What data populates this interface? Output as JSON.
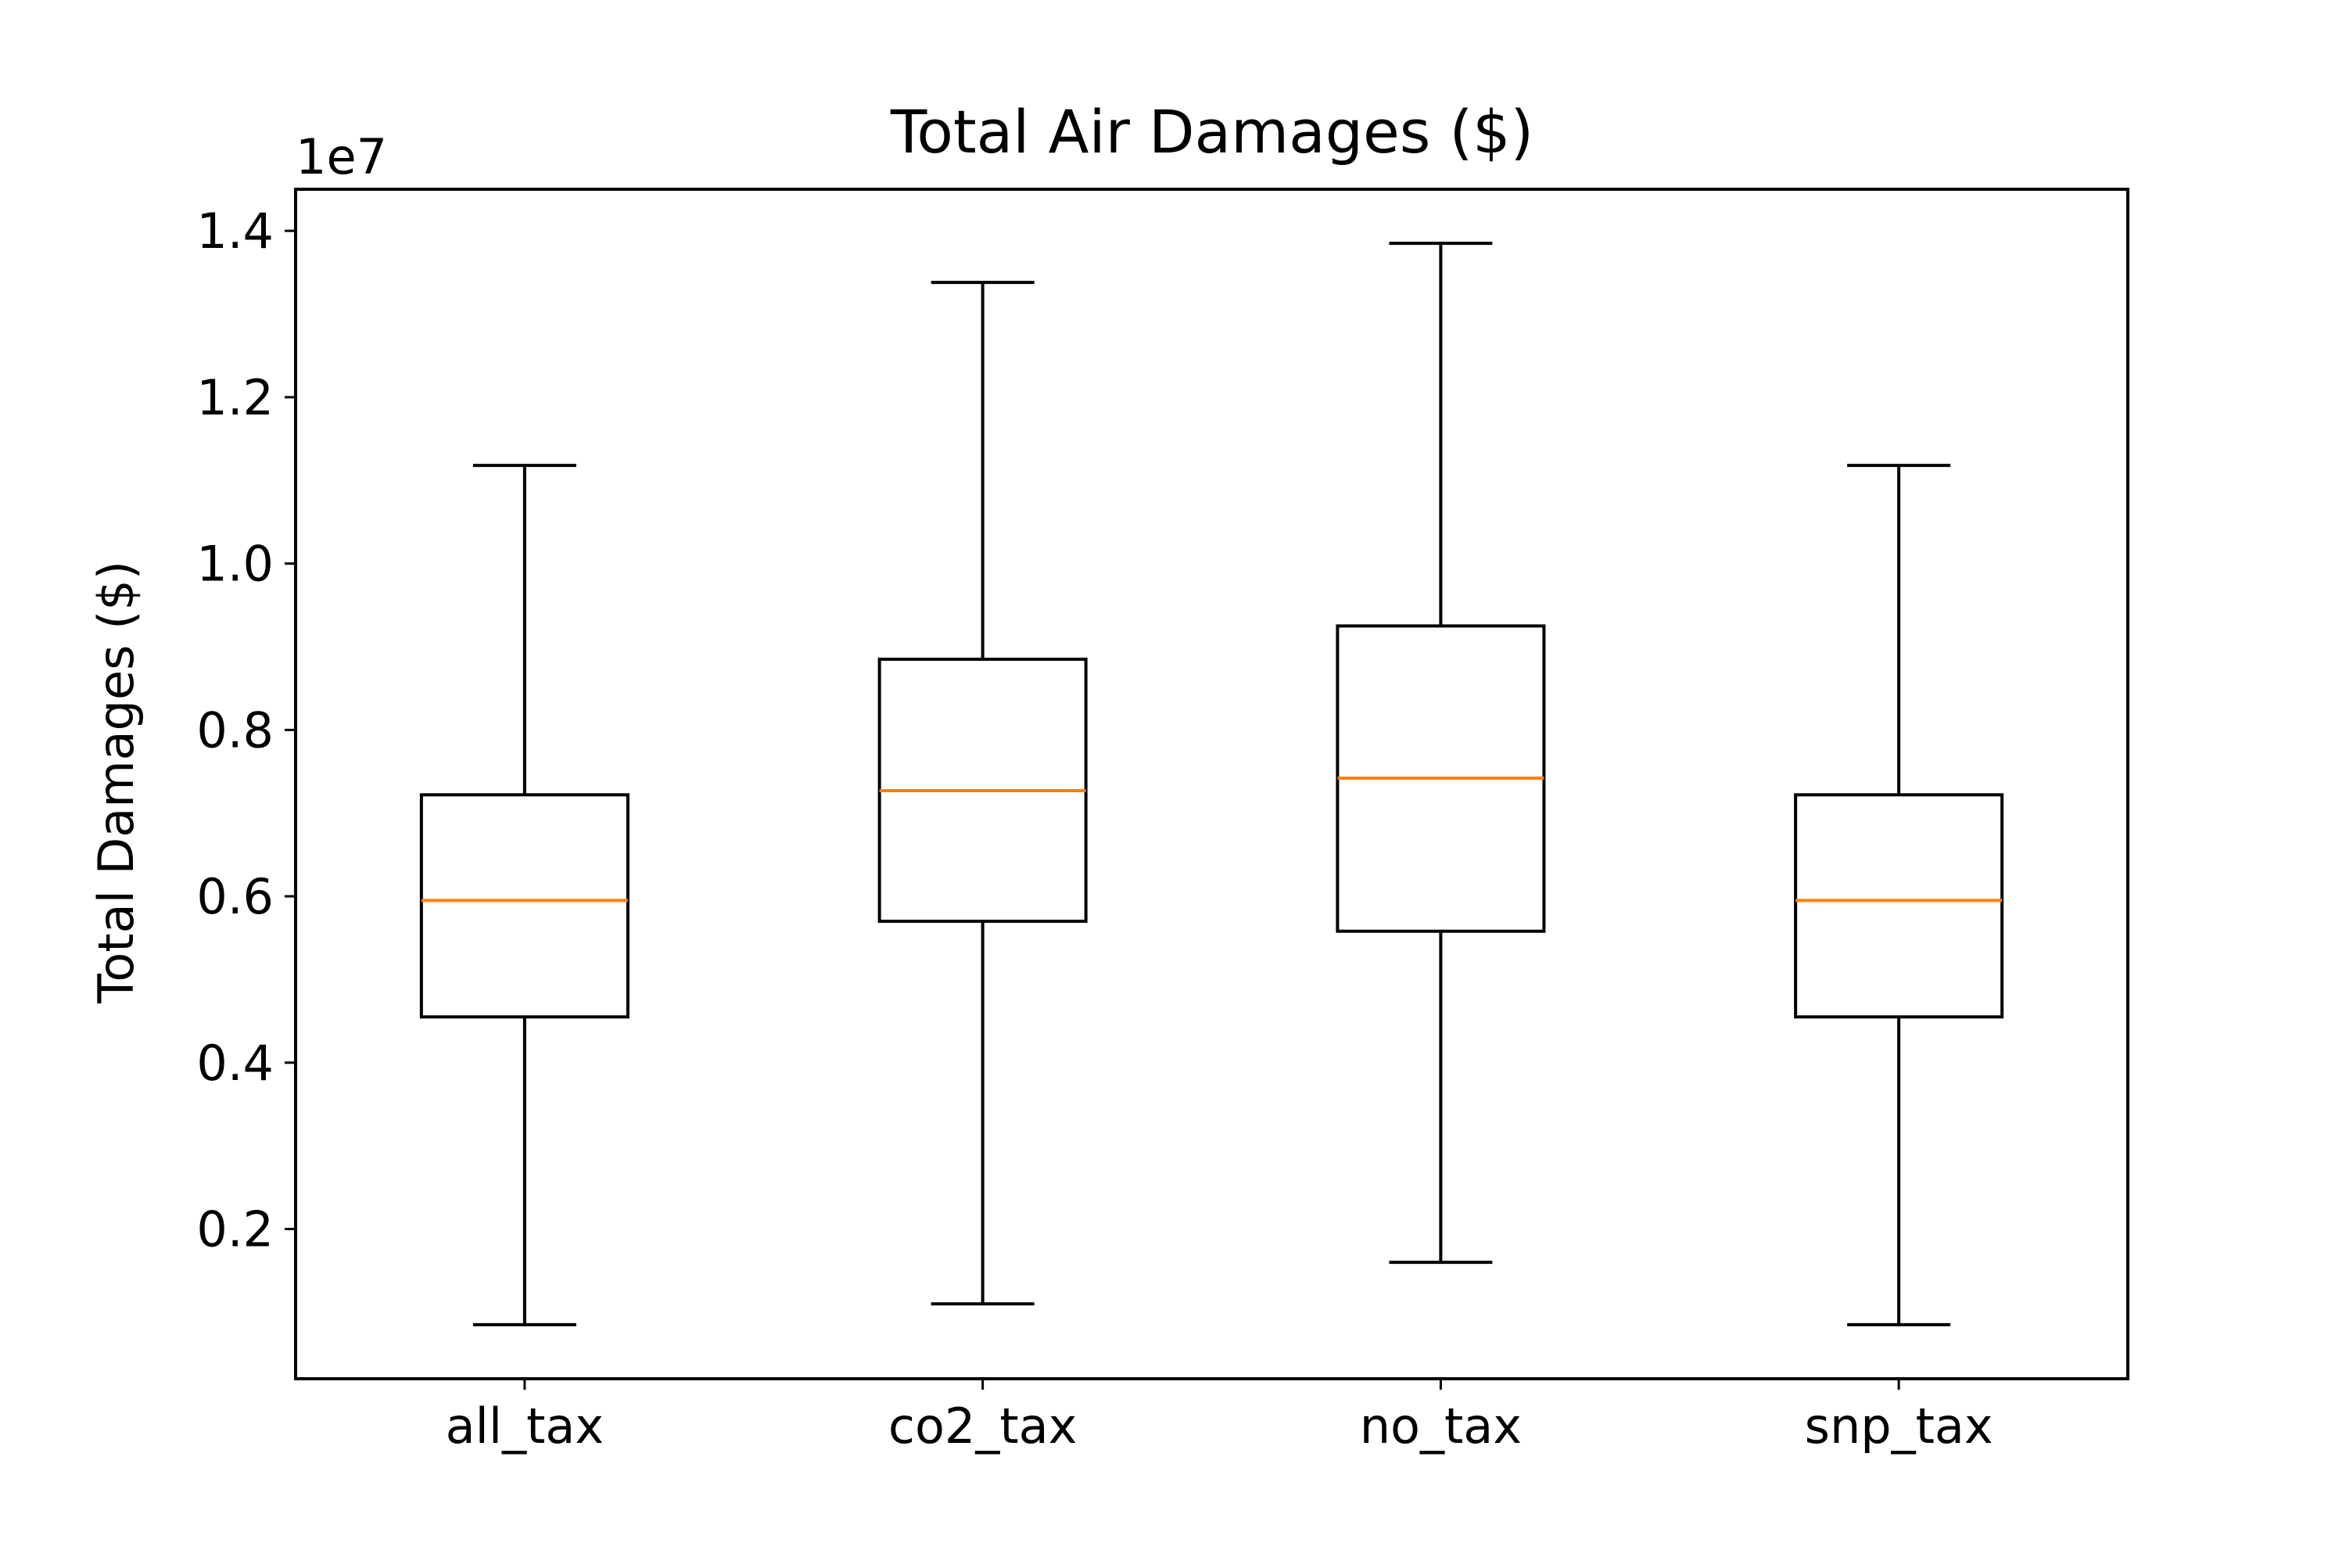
{
  "chart_data": {
    "type": "boxplot",
    "title": "Total Air Damages ($)",
    "xlabel": "",
    "ylabel": "Total Damages ($)",
    "y_offset_text": "1e7",
    "ylim": [
      0.02,
      1.45
    ],
    "yticks": [
      0.2,
      0.4,
      0.6,
      0.8,
      1.0,
      1.2,
      1.4
    ],
    "ytick_labels": [
      "0.2",
      "0.4",
      "0.6",
      "0.8",
      "1.0",
      "1.2",
      "1.4"
    ],
    "grid": false,
    "categories": [
      "all_tax",
      "co2_tax",
      "no_tax",
      "snp_tax"
    ],
    "boxes": [
      {
        "category": "all_tax",
        "whisker_low": 0.085,
        "q1": 0.455,
        "median": 0.595,
        "q3": 0.722,
        "whisker_high": 1.118
      },
      {
        "category": "co2_tax",
        "whisker_low": 0.11,
        "q1": 0.57,
        "median": 0.727,
        "q3": 0.885,
        "whisker_high": 1.338
      },
      {
        "category": "no_tax",
        "whisker_low": 0.16,
        "q1": 0.558,
        "median": 0.742,
        "q3": 0.925,
        "whisker_high": 1.385
      },
      {
        "category": "snp_tax",
        "whisker_low": 0.085,
        "q1": 0.455,
        "median": 0.595,
        "q3": 0.722,
        "whisker_high": 1.118
      }
    ],
    "colors": {
      "box": "#000000",
      "median": "#ff7f0e",
      "axis": "#000000"
    }
  }
}
